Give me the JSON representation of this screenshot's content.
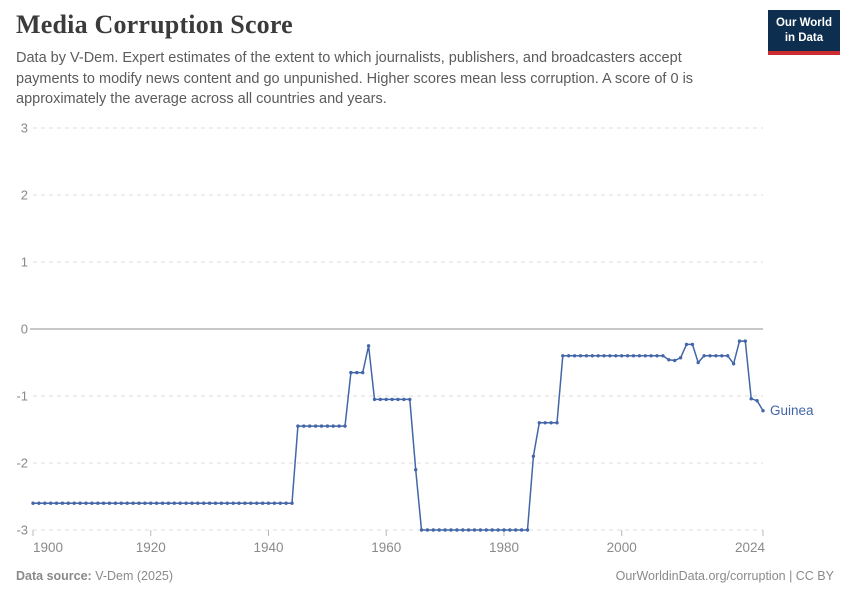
{
  "header": {
    "title": "Media Corruption Score",
    "subtitle": "Data by V-Dem. Expert estimates of the extent to which journalists, publishers, and broadcasters accept payments to modify news content and go unpunished. Higher scores mean less corruption. A score of 0 is approximately the average across all countries and years.",
    "logo_line1": "Our World",
    "logo_line2": "in Data"
  },
  "footer": {
    "source_label": "Data source:",
    "source_text": "V-Dem (2025)",
    "credit": "OurWorldinData.org/corruption | CC BY"
  },
  "colors": {
    "line": "#4266a8",
    "entity_label": "#4266a8",
    "grid": "#dcdcdc",
    "zero_line": "#a6a6a6",
    "axis_tick": "#b8b8b8",
    "tick_text": "#8a8a8a",
    "title_text": "#3b3b3b",
    "subtitle_text": "#5b5b5b",
    "footer_text": "#8a8a8a",
    "logo_bg": "#0d2e4e",
    "logo_accent": "#cb2d30"
  },
  "chart_data": {
    "type": "line",
    "title": "Media Corruption Score",
    "xlabel": "",
    "ylabel": "",
    "grid": true,
    "legend_position": "end-of-line-label",
    "x_range": [
      1900,
      2024
    ],
    "y_range": [
      -3,
      3
    ],
    "y_ticks": [
      3,
      2,
      1,
      0,
      -1,
      -2,
      -3
    ],
    "x_ticks": [
      {
        "year": 1900,
        "label": "1900",
        "anchor": "start"
      },
      {
        "year": 1920,
        "label": "1920",
        "anchor": "middle"
      },
      {
        "year": 1940,
        "label": "1940",
        "anchor": "middle"
      },
      {
        "year": 1960,
        "label": "1960",
        "anchor": "middle"
      },
      {
        "year": 1980,
        "label": "1980",
        "anchor": "middle"
      },
      {
        "year": 2000,
        "label": "2000",
        "anchor": "middle"
      },
      {
        "year": 2024,
        "label": "2024",
        "anchor": "end"
      }
    ],
    "series": [
      {
        "name": "Guinea",
        "color": "#4266a8",
        "x_start": 1900,
        "x_step": 1,
        "values": [
          -2.6,
          -2.6,
          -2.6,
          -2.6,
          -2.6,
          -2.6,
          -2.6,
          -2.6,
          -2.6,
          -2.6,
          -2.6,
          -2.6,
          -2.6,
          -2.6,
          -2.6,
          -2.6,
          -2.6,
          -2.6,
          -2.6,
          -2.6,
          -2.6,
          -2.6,
          -2.6,
          -2.6,
          -2.6,
          -2.6,
          -2.6,
          -2.6,
          -2.6,
          -2.6,
          -2.6,
          -2.6,
          -2.6,
          -2.6,
          -2.6,
          -2.6,
          -2.6,
          -2.6,
          -2.6,
          -2.6,
          -2.6,
          -2.6,
          -2.6,
          -2.6,
          -2.6,
          -1.45,
          -1.45,
          -1.45,
          -1.45,
          -1.45,
          -1.45,
          -1.45,
          -1.45,
          -1.45,
          -0.65,
          -0.65,
          -0.65,
          -0.25,
          -1.05,
          -1.05,
          -1.05,
          -1.05,
          -1.05,
          -1.05,
          -1.05,
          -2.1,
          -3,
          -3,
          -3,
          -3,
          -3,
          -3,
          -3,
          -3,
          -3,
          -3,
          -3,
          -3,
          -3,
          -3,
          -3,
          -3,
          -3,
          -3,
          -3,
          -1.9,
          -1.4,
          -1.4,
          -1.4,
          -1.4,
          -0.4,
          -0.4,
          -0.4,
          -0.4,
          -0.4,
          -0.4,
          -0.4,
          -0.4,
          -0.4,
          -0.4,
          -0.4,
          -0.4,
          -0.4,
          -0.4,
          -0.4,
          -0.4,
          -0.4,
          -0.4,
          -0.46,
          -0.47,
          -0.43,
          -0.23,
          -0.23,
          -0.5,
          -0.4,
          -0.4,
          -0.4,
          -0.4,
          -0.4,
          -0.52,
          -0.18,
          -0.18,
          -1.04,
          -1.07,
          -1.22
        ]
      }
    ]
  }
}
